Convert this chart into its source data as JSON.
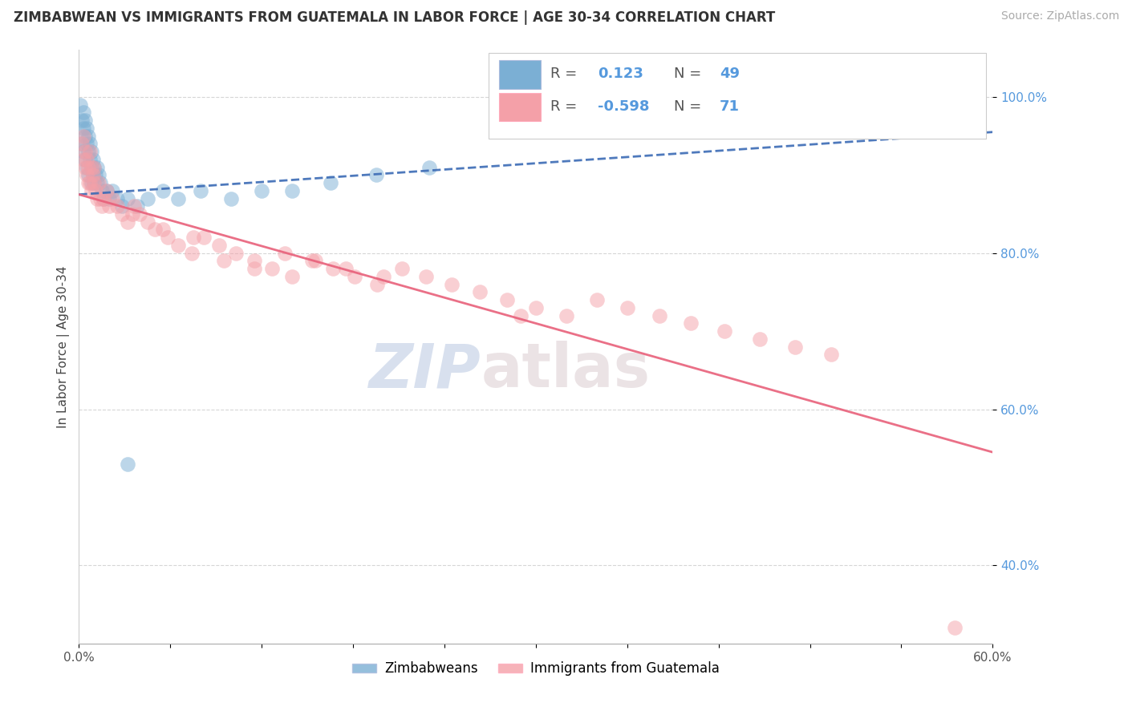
{
  "title": "ZIMBABWEAN VS IMMIGRANTS FROM GUATEMALA IN LABOR FORCE | AGE 30-34 CORRELATION CHART",
  "source": "Source: ZipAtlas.com",
  "ylabel": "In Labor Force | Age 30-34",
  "xlim": [
    0.0,
    0.6
  ],
  "ylim": [
    0.3,
    1.06
  ],
  "xticks": [
    0.0,
    0.06,
    0.12,
    0.18,
    0.24,
    0.3,
    0.36,
    0.42,
    0.48,
    0.54,
    0.6
  ],
  "xticklabels": [
    "0.0%",
    "",
    "",
    "",
    "",
    "",
    "",
    "",
    "",
    "",
    "60.0%"
  ],
  "yticks": [
    0.4,
    0.6,
    0.8,
    1.0
  ],
  "yticklabels": [
    "40.0%",
    "60.0%",
    "80.0%",
    "100.0%"
  ],
  "blue_R": 0.123,
  "blue_N": 49,
  "pink_R": -0.598,
  "pink_N": 71,
  "blue_color": "#7BAFD4",
  "pink_color": "#F4A0A8",
  "blue_line_color": "#3B6BB5",
  "pink_line_color": "#E8607A",
  "legend_label_blue": "Zimbabweans",
  "legend_label_pink": "Immigrants from Guatemala",
  "blue_scatter_x": [
    0.001,
    0.002,
    0.002,
    0.003,
    0.003,
    0.003,
    0.004,
    0.004,
    0.004,
    0.005,
    0.005,
    0.005,
    0.006,
    0.006,
    0.006,
    0.007,
    0.007,
    0.008,
    0.008,
    0.008,
    0.009,
    0.009,
    0.01,
    0.01,
    0.011,
    0.012,
    0.012,
    0.013,
    0.014,
    0.015,
    0.016,
    0.018,
    0.02,
    0.022,
    0.025,
    0.028,
    0.032,
    0.038,
    0.045,
    0.055,
    0.065,
    0.08,
    0.1,
    0.12,
    0.14,
    0.165,
    0.195,
    0.23,
    0.032
  ],
  "blue_scatter_y": [
    0.99,
    0.97,
    0.94,
    0.98,
    0.96,
    0.93,
    0.97,
    0.95,
    0.92,
    0.96,
    0.94,
    0.91,
    0.95,
    0.93,
    0.9,
    0.94,
    0.92,
    0.93,
    0.91,
    0.89,
    0.92,
    0.9,
    0.91,
    0.89,
    0.9,
    0.91,
    0.89,
    0.9,
    0.89,
    0.88,
    0.87,
    0.88,
    0.87,
    0.88,
    0.87,
    0.86,
    0.87,
    0.86,
    0.87,
    0.88,
    0.87,
    0.88,
    0.87,
    0.88,
    0.88,
    0.89,
    0.9,
    0.91,
    0.53
  ],
  "pink_scatter_x": [
    0.002,
    0.003,
    0.003,
    0.004,
    0.004,
    0.005,
    0.005,
    0.006,
    0.006,
    0.007,
    0.007,
    0.008,
    0.008,
    0.009,
    0.01,
    0.01,
    0.011,
    0.012,
    0.013,
    0.014,
    0.015,
    0.016,
    0.018,
    0.02,
    0.022,
    0.025,
    0.028,
    0.032,
    0.036,
    0.04,
    0.045,
    0.05,
    0.058,
    0.065,
    0.074,
    0.082,
    0.092,
    0.103,
    0.115,
    0.127,
    0.14,
    0.153,
    0.167,
    0.181,
    0.196,
    0.212,
    0.228,
    0.245,
    0.263,
    0.281,
    0.3,
    0.32,
    0.34,
    0.36,
    0.381,
    0.402,
    0.424,
    0.447,
    0.47,
    0.494,
    0.035,
    0.055,
    0.075,
    0.095,
    0.115,
    0.135,
    0.155,
    0.175,
    0.2,
    0.575,
    0.29
  ],
  "pink_scatter_y": [
    0.94,
    0.92,
    0.95,
    0.91,
    0.93,
    0.9,
    0.92,
    0.89,
    0.91,
    0.93,
    0.89,
    0.91,
    0.88,
    0.9,
    0.89,
    0.91,
    0.88,
    0.87,
    0.89,
    0.87,
    0.86,
    0.87,
    0.88,
    0.86,
    0.87,
    0.86,
    0.85,
    0.84,
    0.86,
    0.85,
    0.84,
    0.83,
    0.82,
    0.81,
    0.8,
    0.82,
    0.81,
    0.8,
    0.79,
    0.78,
    0.77,
    0.79,
    0.78,
    0.77,
    0.76,
    0.78,
    0.77,
    0.76,
    0.75,
    0.74,
    0.73,
    0.72,
    0.74,
    0.73,
    0.72,
    0.71,
    0.7,
    0.69,
    0.68,
    0.67,
    0.85,
    0.83,
    0.82,
    0.79,
    0.78,
    0.8,
    0.79,
    0.78,
    0.77,
    0.32,
    0.72
  ]
}
